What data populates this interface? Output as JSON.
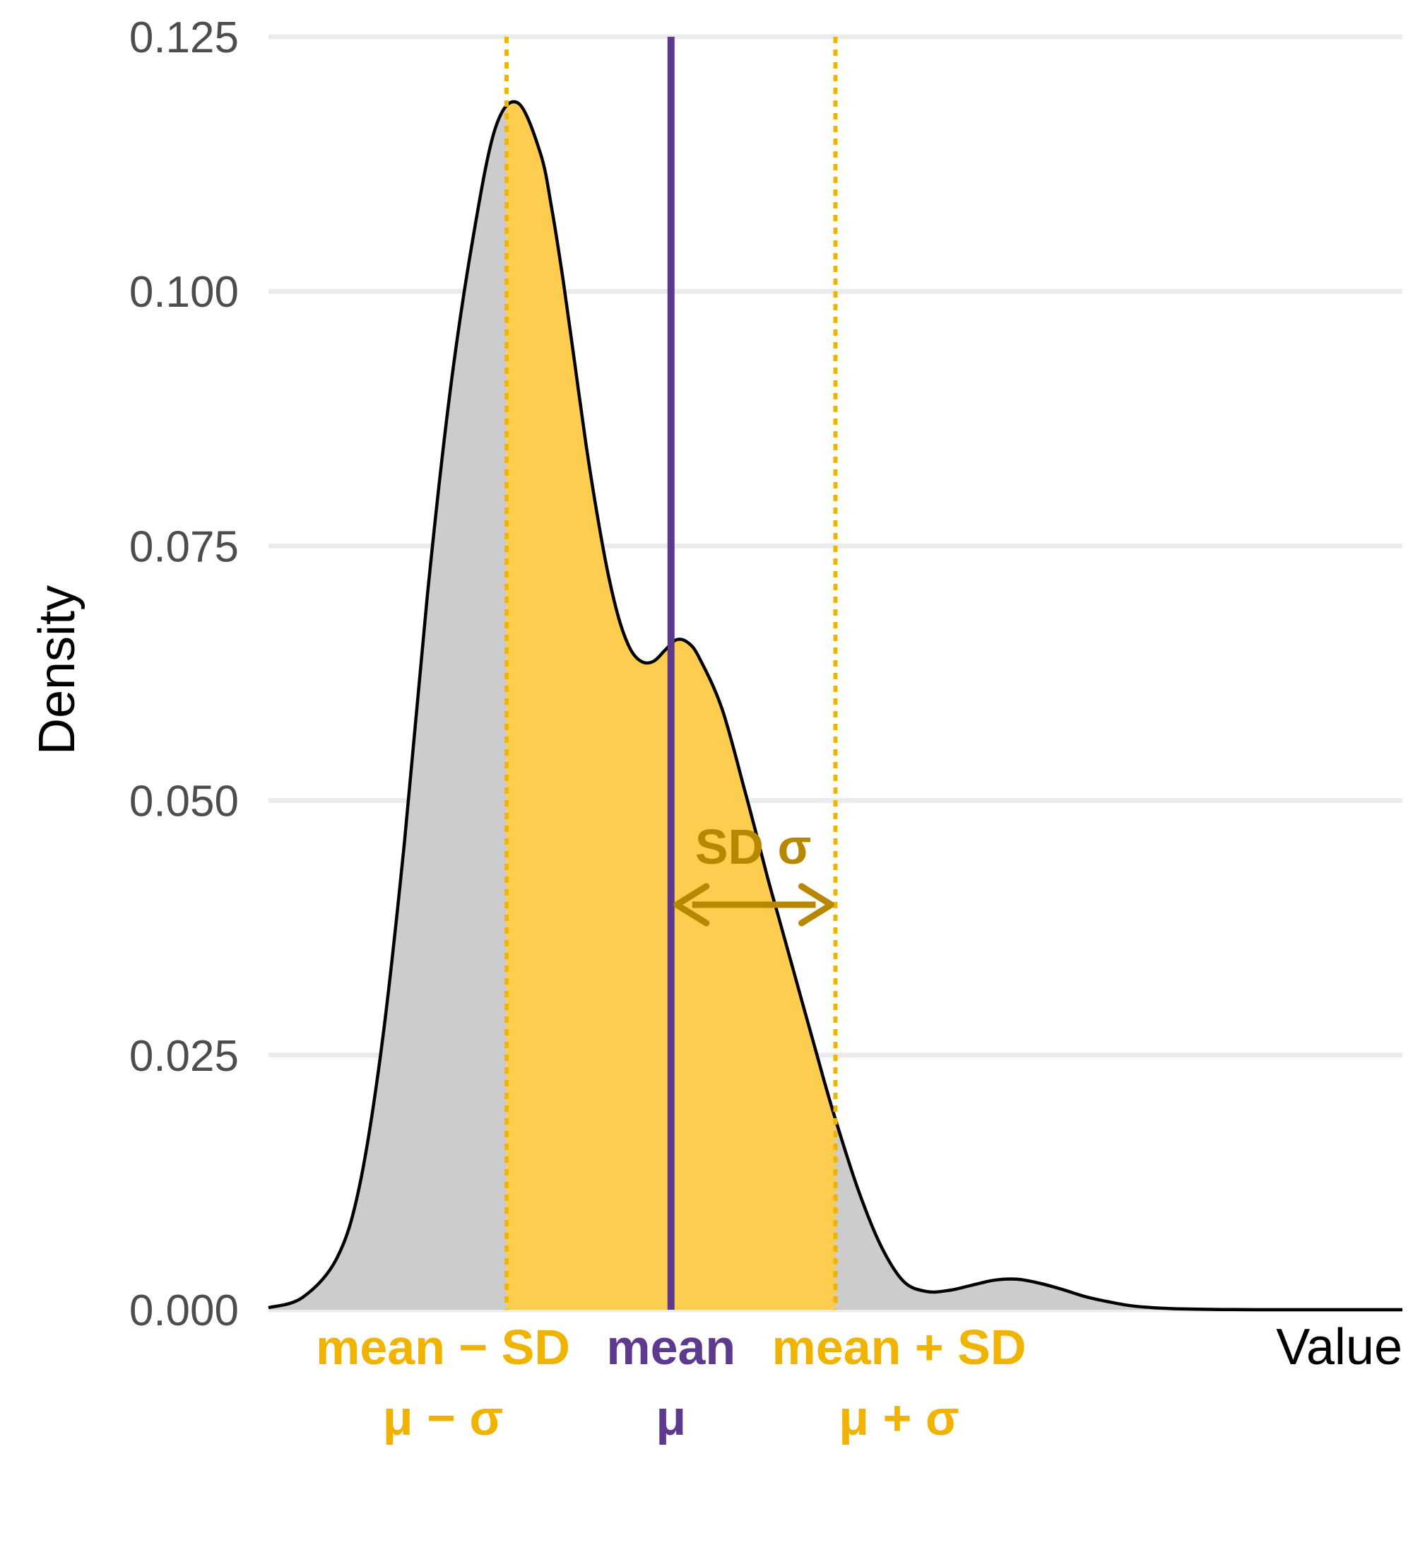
{
  "chart_data": {
    "type": "area",
    "ylabel": "Density",
    "xlabel": "Value",
    "ylim": [
      0,
      0.125
    ],
    "yticks": [
      "0.000",
      "0.025",
      "0.050",
      "0.075",
      "0.100",
      "0.125"
    ],
    "ytick_values": [
      0,
      0.025,
      0.05,
      0.075,
      0.1,
      0.125
    ],
    "grid": "horizontal",
    "xlim": [
      0,
      100
    ],
    "density_curve": {
      "x": [
        0,
        3,
        6,
        8,
        10,
        12,
        14,
        16,
        18,
        20,
        22,
        24,
        25,
        26,
        27,
        28,
        29,
        30,
        31,
        32,
        33,
        34,
        35,
        36,
        37,
        38,
        40,
        42,
        43,
        44,
        45,
        46,
        47,
        48,
        49,
        50,
        52,
        54,
        56,
        58,
        60,
        62,
        64,
        66,
        68,
        70,
        72,
        74,
        76,
        78,
        80,
        82,
        84,
        86,
        88,
        90,
        93,
        96,
        100
      ],
      "y": [
        0.0002,
        0.0012,
        0.005,
        0.012,
        0.026,
        0.046,
        0.07,
        0.09,
        0.105,
        0.116,
        0.1185,
        0.1135,
        0.108,
        0.101,
        0.093,
        0.085,
        0.078,
        0.072,
        0.0675,
        0.0647,
        0.0636,
        0.0637,
        0.0648,
        0.0658,
        0.0655,
        0.064,
        0.059,
        0.051,
        0.0468,
        0.0425,
        0.0385,
        0.0345,
        0.0305,
        0.0265,
        0.0225,
        0.0187,
        0.0118,
        0.0063,
        0.0028,
        0.0018,
        0.0019,
        0.0024,
        0.0029,
        0.003,
        0.0026,
        0.002,
        0.0013,
        0.0008,
        0.0004,
        0.0002,
        0.0001,
        5e-05,
        2e-05,
        1e-05,
        0,
        0,
        0,
        0,
        0
      ]
    },
    "mean": 35.5,
    "sd": 14.5,
    "shaded_region": "mean ± SD",
    "sd_annotation": "SD σ",
    "x_markers": [
      {
        "line1": "mean − SD",
        "line2": "μ − σ",
        "x": 21
      },
      {
        "line1": "mean",
        "line2": "μ",
        "x": 35.5
      },
      {
        "line1": "mean + SD",
        "line2": "μ + σ",
        "x": 50
      }
    ],
    "colors": {
      "grid": "#ebebeb",
      "curve_fill": "#cccccc",
      "curve_line": "#000000",
      "sd_fill": "#fdcd50",
      "sd_lines": "#f0b400",
      "mean_line": "#5e3a8f",
      "sd_annotation": "#b88700",
      "tick_text": "#4d4d4d"
    }
  }
}
